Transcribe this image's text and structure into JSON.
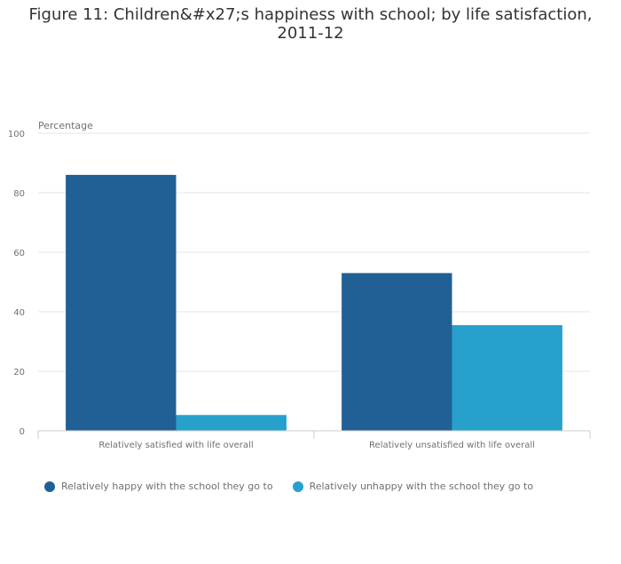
{
  "chart_data": {
    "type": "bar",
    "title": "Figure 11: Children&#x27;s happiness with school; by life satisfaction, 2011-12",
    "ylabel": "Percentage",
    "xlabel": "",
    "ylim": [
      0,
      100
    ],
    "yticks": [
      0,
      20,
      40,
      60,
      80,
      100
    ],
    "categories": [
      "Relatively satisfied with life overall",
      "Relatively unsatisfied with life overall"
    ],
    "series": [
      {
        "name": "Relatively happy with the school they go to",
        "color": "#206095",
        "values": [
          86,
          53
        ]
      },
      {
        "name": "Relatively unhappy with the school they go to",
        "color": "#27a0cc",
        "values": [
          5.3,
          35.5
        ]
      }
    ],
    "grid": true,
    "legend": "bottom-left"
  }
}
